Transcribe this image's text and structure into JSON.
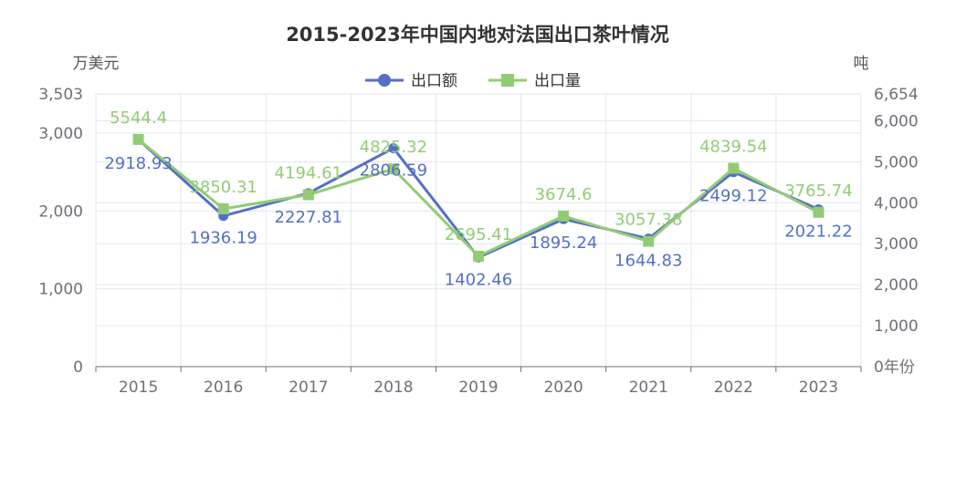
{
  "chart_data": {
    "type": "line",
    "title": "2015-2023年中国内地对法国出口茶叶情况",
    "left_unit": "万美元",
    "right_unit": "吨",
    "categories": [
      "2015",
      "2016",
      "2017",
      "2018",
      "2019",
      "2020",
      "2021",
      "2022",
      "2023"
    ],
    "y_left": {
      "ticks": [
        "0",
        "1,000",
        "2,000",
        "3,000",
        "3,503"
      ],
      "ylim": [
        0,
        3503
      ]
    },
    "y_right": {
      "ticks": [
        "0年份",
        "1,000",
        "2,000",
        "3,000",
        "4,000",
        "5,000",
        "6,000",
        "6,654"
      ],
      "ylim": [
        0,
        6654
      ]
    },
    "series": [
      {
        "name": "出口额",
        "axis": "left",
        "color": "#5470c6",
        "marker": "circle",
        "values": [
          2918.93,
          1936.19,
          2227.81,
          2806.59,
          1402.46,
          1895.24,
          1644.83,
          2499.12,
          2021.22
        ],
        "labels": [
          "2918.93",
          "1936.19",
          "2227.81",
          "2806.59",
          "1402.46",
          "1895.24",
          "1644.83",
          "2499.12",
          "2021.22"
        ]
      },
      {
        "name": "出口量",
        "axis": "right",
        "color": "#91cc75",
        "marker": "square",
        "values": [
          5544.4,
          3850.31,
          4194.61,
          4825.32,
          2695.41,
          3674.6,
          3057.38,
          4839.54,
          3765.74
        ],
        "labels": [
          "5544.4",
          "3850.31",
          "4194.61",
          "4825.32",
          "2695.41",
          "3674.6",
          "3057.38",
          "4839.54",
          "3765.74"
        ]
      }
    ],
    "legend_position": "top-center",
    "grid": true
  }
}
